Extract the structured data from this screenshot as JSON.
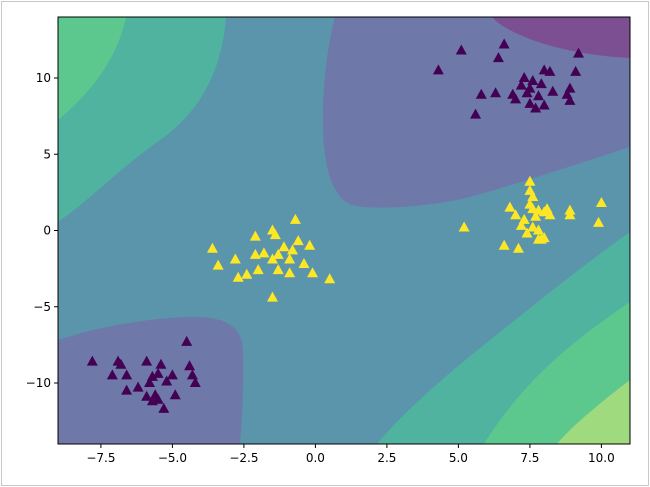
{
  "chart_data": {
    "type": "scatter",
    "title": "",
    "xlabel": "",
    "ylabel": "",
    "xlim": [
      -9,
      11
    ],
    "ylim": [
      -14,
      14
    ],
    "x_ticks": [
      -7.5,
      -5.0,
      -2.5,
      0.0,
      2.5,
      5.0,
      7.5,
      10.0
    ],
    "x_tick_labels": [
      "−7.5",
      "−5.0",
      "−2.5",
      "0.0",
      "2.5",
      "5.0",
      "7.5",
      "10.0"
    ],
    "y_ticks": [
      10,
      5,
      0,
      -5,
      -10
    ],
    "y_tick_labels": [
      "10",
      "5",
      "0",
      "−5",
      "−10"
    ],
    "grid": false,
    "legend": "none",
    "marker": "triangle",
    "background": "filled decision-function contours (viridis colormap, alpha ~0.7)",
    "colors": {
      "class0": "#440154",
      "class1": "#fde725",
      "contour_lowest": "#7b4f91",
      "contour_low": "#6e78a9",
      "contour_mid": "#5b95ab",
      "contour_high": "#4fb3a0",
      "contour_higher": "#5cc88e",
      "contour_highest": "#9fda7e"
    },
    "series": [
      {
        "color": "#440154",
        "points": [
          [
            4.3,
            10.5
          ],
          [
            5.1,
            11.8
          ],
          [
            5.6,
            7.6
          ],
          [
            5.8,
            8.9
          ],
          [
            6.3,
            9.0
          ],
          [
            6.4,
            11.3
          ],
          [
            6.6,
            12.2
          ],
          [
            6.9,
            8.9
          ],
          [
            7.0,
            8.6
          ],
          [
            7.2,
            9.5
          ],
          [
            7.3,
            10.0
          ],
          [
            7.4,
            9.0
          ],
          [
            7.5,
            8.3
          ],
          [
            7.5,
            9.3
          ],
          [
            7.6,
            9.8
          ],
          [
            7.7,
            8.0
          ],
          [
            7.8,
            8.8
          ],
          [
            7.9,
            9.6
          ],
          [
            8.0,
            8.2
          ],
          [
            8.0,
            10.5
          ],
          [
            8.2,
            10.4
          ],
          [
            8.3,
            9.1
          ],
          [
            8.8,
            8.9
          ],
          [
            8.9,
            8.5
          ],
          [
            8.9,
            9.3
          ],
          [
            9.1,
            10.4
          ],
          [
            9.2,
            11.6
          ],
          [
            -7.8,
            -8.6
          ],
          [
            -7.1,
            -9.5
          ],
          [
            -6.9,
            -8.6
          ],
          [
            -6.8,
            -8.8
          ],
          [
            -6.6,
            -9.5
          ],
          [
            -6.6,
            -10.5
          ],
          [
            -6.2,
            -10.3
          ],
          [
            -5.9,
            -8.6
          ],
          [
            -5.9,
            -10.9
          ],
          [
            -5.8,
            -10.0
          ],
          [
            -5.7,
            -9.6
          ],
          [
            -5.7,
            -11.2
          ],
          [
            -5.6,
            -10.8
          ],
          [
            -5.5,
            -9.4
          ],
          [
            -5.5,
            -11.1
          ],
          [
            -5.4,
            -8.8
          ],
          [
            -5.3,
            -11.7
          ],
          [
            -5.2,
            -9.9
          ],
          [
            -5.0,
            -9.5
          ],
          [
            -4.9,
            -10.8
          ],
          [
            -4.5,
            -7.3
          ],
          [
            -4.4,
            -8.9
          ],
          [
            -4.3,
            -9.5
          ],
          [
            -4.2,
            -10.0
          ]
        ]
      },
      {
        "color": "#fde725",
        "points": [
          [
            -3.6,
            -1.2
          ],
          [
            -3.4,
            -2.3
          ],
          [
            -2.8,
            -1.9
          ],
          [
            -2.7,
            -3.1
          ],
          [
            -2.4,
            -2.9
          ],
          [
            -2.1,
            -1.6
          ],
          [
            -2.1,
            -0.4
          ],
          [
            -2.0,
            -2.6
          ],
          [
            -1.8,
            -1.5
          ],
          [
            -1.5,
            -4.4
          ],
          [
            -1.5,
            0.0
          ],
          [
            -1.5,
            -1.9
          ],
          [
            -1.4,
            -0.3
          ],
          [
            -1.3,
            -1.6
          ],
          [
            -1.3,
            -2.6
          ],
          [
            -1.1,
            -1.1
          ],
          [
            -0.9,
            -1.9
          ],
          [
            -0.9,
            -2.8
          ],
          [
            -0.8,
            -1.3
          ],
          [
            -0.7,
            0.7
          ],
          [
            -0.6,
            -0.7
          ],
          [
            -0.4,
            -2.2
          ],
          [
            -0.2,
            -1.0
          ],
          [
            -0.1,
            -2.8
          ],
          [
            0.5,
            -3.2
          ],
          [
            5.2,
            0.2
          ],
          [
            6.6,
            -1.0
          ],
          [
            6.8,
            1.5
          ],
          [
            7.0,
            1.0
          ],
          [
            7.1,
            -1.2
          ],
          [
            7.2,
            0.3
          ],
          [
            7.3,
            0.7
          ],
          [
            7.4,
            -0.2
          ],
          [
            7.5,
            2.6
          ],
          [
            7.5,
            3.2
          ],
          [
            7.5,
            1.7
          ],
          [
            7.6,
            0.2
          ],
          [
            7.6,
            1.4
          ],
          [
            7.6,
            2.2
          ],
          [
            7.7,
            0.9
          ],
          [
            7.8,
            0.0
          ],
          [
            7.8,
            -0.6
          ],
          [
            7.8,
            1.3
          ],
          [
            7.9,
            -0.6
          ],
          [
            8.0,
            -0.5
          ],
          [
            8.0,
            1.2
          ],
          [
            8.1,
            1.4
          ],
          [
            8.2,
            1.0
          ],
          [
            8.9,
            1.0
          ],
          [
            8.9,
            1.3
          ],
          [
            9.9,
            0.5
          ],
          [
            10.0,
            1.8
          ]
        ]
      }
    ]
  }
}
